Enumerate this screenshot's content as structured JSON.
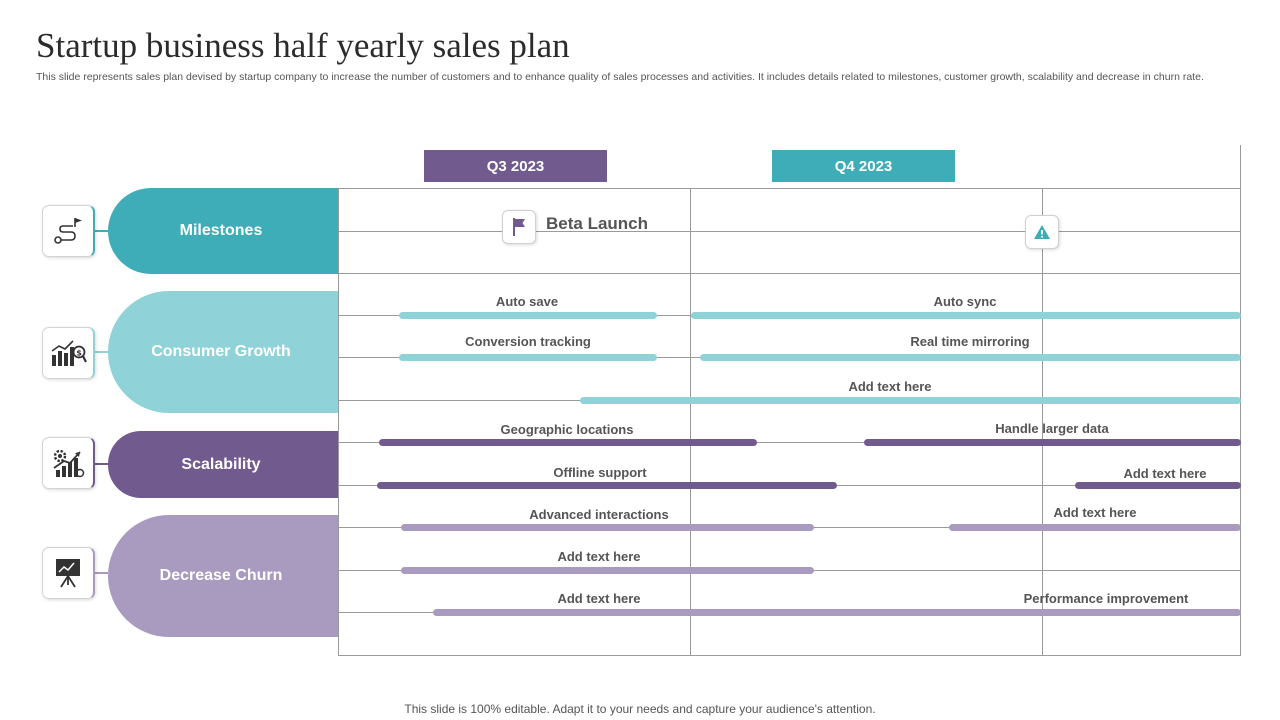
{
  "title": "Startup business half yearly sales plan",
  "subtitle": "This slide represents sales plan devised by startup company to increase the number of customers and to enhance quality of sales processes and activities. It includes details related to milestones, customer growth, scalability and decrease in churn rate.",
  "quarters": [
    "Q3 2023",
    "Q4 2023"
  ],
  "categories": [
    "Milestones",
    "Consumer Growth",
    "Scalability",
    "Decrease Churn"
  ],
  "milestone": {
    "label": "Beta Launch",
    "icons": [
      "flag-icon",
      "warning-icon"
    ]
  },
  "tasks": {
    "auto_save": "Auto save",
    "auto_sync": "Auto sync",
    "conversion_tracking": "Conversion  tracking",
    "real_time_mirroring": "Real time mirroring",
    "add_text_1": "Add text here",
    "geographic_locations": "Geographic locations",
    "handle_larger_data": "Handle larger data",
    "offline_support": "Offline support",
    "add_text_2": "Add text here",
    "advanced_interactions": "Advanced interactions",
    "add_text_3": "Add text here",
    "add_text_4": "Add text here",
    "add_text_5": "Add text here",
    "performance_improvement": "Performance improvement"
  },
  "category_icons": [
    "roadmap-icon",
    "growth-chart-icon",
    "scalability-icon",
    "presentation-icon"
  ],
  "colors": {
    "teal": "#3fadb7",
    "light_teal": "#8fd3d9",
    "purple": "#715a8e",
    "light_purple": "#a99abf"
  },
  "footer": "This slide is 100% editable. Adapt it to your needs and capture your audience's attention."
}
